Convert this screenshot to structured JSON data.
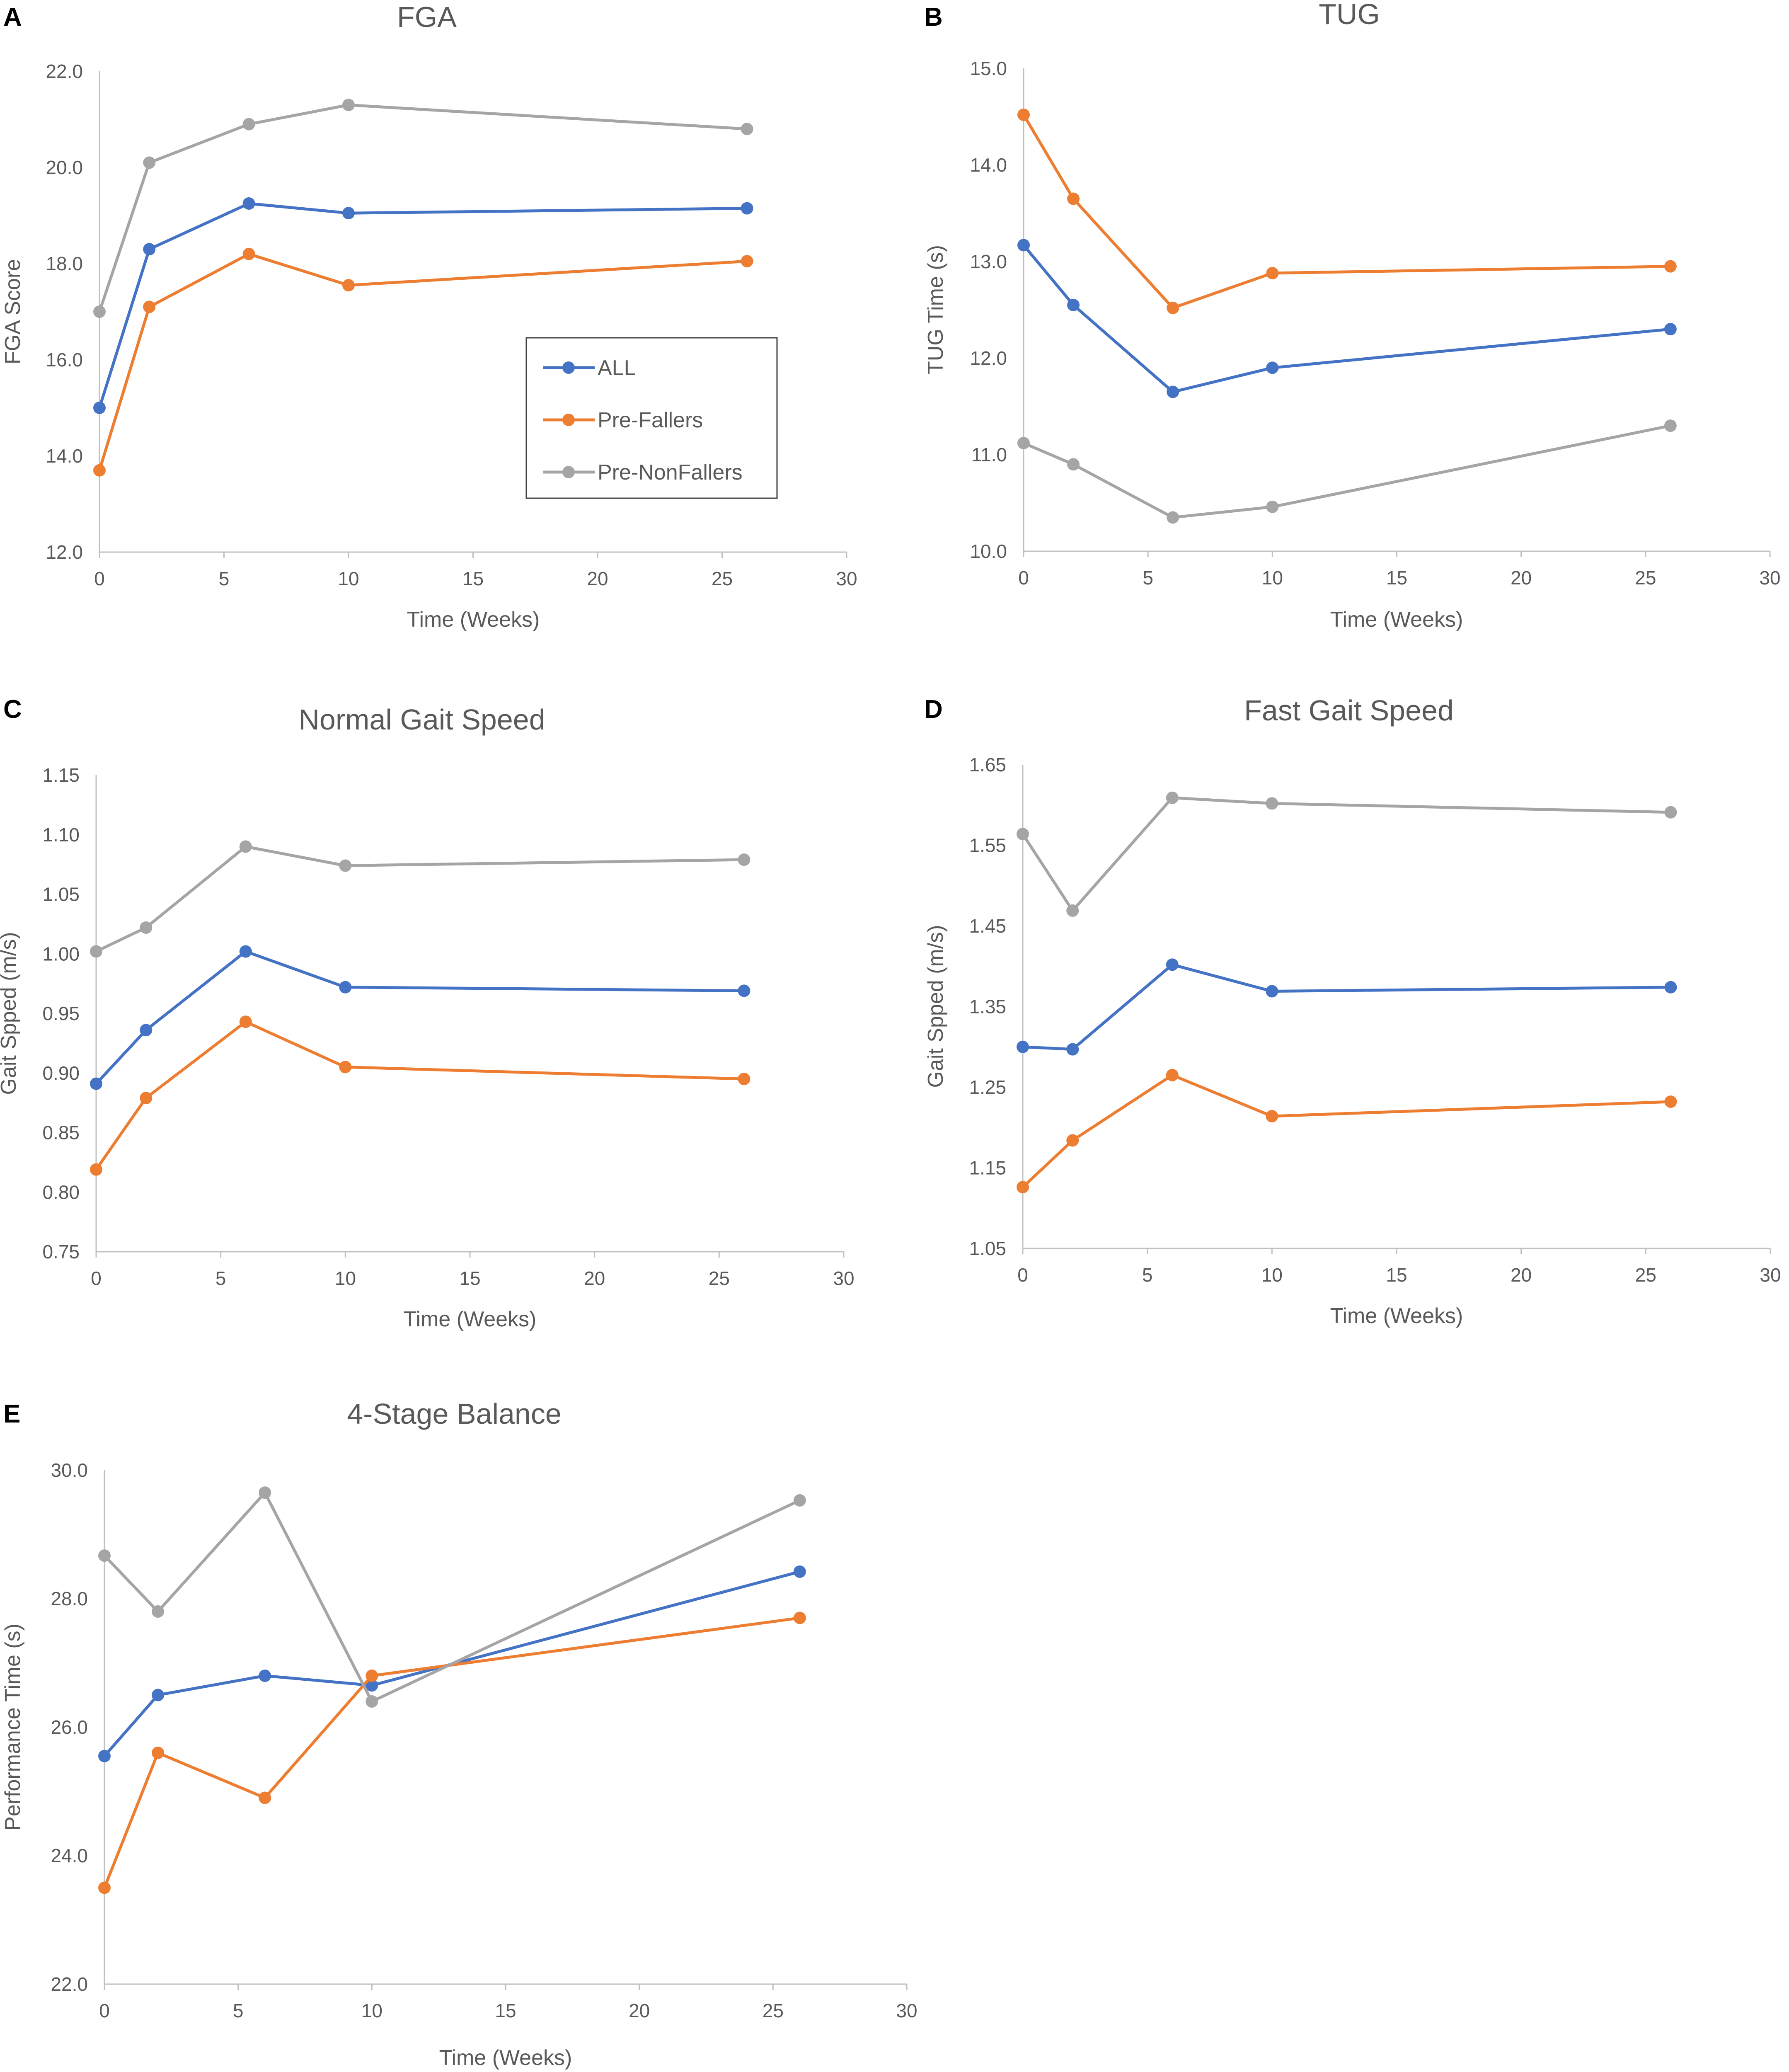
{
  "series_meta": [
    {
      "name": "ALL",
      "color": "#4472C4"
    },
    {
      "name": "Pre-Fallers",
      "color": "#ED7D31"
    },
    {
      "name": "Pre-NonFallers",
      "color": "#A5A5A5"
    }
  ],
  "chart_data": [
    {
      "panel": "A",
      "type": "line",
      "title": "FGA",
      "xlabel": "Time (Weeks)",
      "ylabel": "FGA Score",
      "xlim": [
        0,
        30
      ],
      "ylim": [
        12.0,
        22.0
      ],
      "xticks": [
        "0",
        "5",
        "10",
        "15",
        "20",
        "25",
        "30"
      ],
      "yticks": [
        "12.0",
        "14.0",
        "16.0",
        "18.0",
        "20.0",
        "22.0"
      ],
      "x": [
        0,
        2,
        6,
        10,
        26
      ],
      "legend": "inside-right",
      "series": [
        {
          "name": "ALL",
          "values": [
            15.0,
            18.3,
            19.25,
            19.05,
            19.15
          ]
        },
        {
          "name": "Pre-Fallers",
          "values": [
            13.7,
            17.1,
            18.2,
            17.55,
            18.05
          ]
        },
        {
          "name": "Pre-NonFallers",
          "values": [
            17.0,
            20.1,
            20.9,
            21.3,
            20.8
          ]
        }
      ]
    },
    {
      "panel": "B",
      "type": "line",
      "title": "TUG",
      "xlabel": "Time (Weeks)",
      "ylabel": "TUG Time (s)",
      "xlim": [
        0,
        30
      ],
      "ylim": [
        10.0,
        15.0
      ],
      "xticks": [
        "0",
        "5",
        "10",
        "15",
        "20",
        "25",
        "30"
      ],
      "yticks": [
        "10.0",
        "11.0",
        "12.0",
        "13.0",
        "14.0",
        "15.0"
      ],
      "x": [
        0,
        2,
        6,
        10,
        26
      ],
      "series": [
        {
          "name": "ALL",
          "values": [
            13.17,
            12.55,
            11.65,
            11.9,
            12.3
          ]
        },
        {
          "name": "Pre-Fallers",
          "values": [
            14.52,
            13.65,
            12.52,
            12.88,
            12.95
          ]
        },
        {
          "name": "Pre-NonFallers",
          "values": [
            11.12,
            10.9,
            10.35,
            10.46,
            11.3
          ]
        }
      ]
    },
    {
      "panel": "C",
      "type": "line",
      "title": "Normal Gait Speed",
      "xlabel": "Time (Weeks)",
      "ylabel": "Gait Spped (m/s)",
      "xlim": [
        0,
        30
      ],
      "ylim": [
        0.75,
        1.15
      ],
      "xticks": [
        "0",
        "5",
        "10",
        "15",
        "20",
        "25",
        "30"
      ],
      "yticks": [
        "0.75",
        "0.80",
        "0.85",
        "0.90",
        "0.95",
        "1.00",
        "1.05",
        "1.10",
        "1.15"
      ],
      "x": [
        0,
        2,
        6,
        10,
        26
      ],
      "series": [
        {
          "name": "ALL",
          "values": [
            0.891,
            0.936,
            1.002,
            0.972,
            0.969
          ]
        },
        {
          "name": "Pre-Fallers",
          "values": [
            0.819,
            0.879,
            0.943,
            0.905,
            0.895
          ]
        },
        {
          "name": "Pre-NonFallers",
          "values": [
            1.002,
            1.022,
            1.09,
            1.074,
            1.079
          ]
        }
      ]
    },
    {
      "panel": "D",
      "type": "line",
      "title": "Fast Gait Speed",
      "xlabel": "Time (Weeks)",
      "ylabel": "Gait Spped (m/s)",
      "xlim": [
        0,
        30
      ],
      "ylim": [
        1.05,
        1.65
      ],
      "xticks": [
        "0",
        "5",
        "10",
        "15",
        "20",
        "25",
        "30"
      ],
      "yticks": [
        "1.05",
        "1.15",
        "1.25",
        "1.35",
        "1.45",
        "1.55",
        "1.65"
      ],
      "x": [
        0,
        2,
        6,
        10,
        26
      ],
      "series": [
        {
          "name": "ALL",
          "values": [
            1.3,
            1.297,
            1.402,
            1.369,
            1.374
          ]
        },
        {
          "name": "Pre-Fallers",
          "values": [
            1.126,
            1.184,
            1.265,
            1.214,
            1.232
          ]
        },
        {
          "name": "Pre-NonFallers",
          "values": [
            1.564,
            1.469,
            1.609,
            1.602,
            1.591
          ]
        }
      ]
    },
    {
      "panel": "E",
      "type": "line",
      "title": "4-Stage Balance",
      "xlabel": "Time (Weeks)",
      "ylabel": "Performance Time (s)",
      "xlim": [
        0,
        30
      ],
      "ylim": [
        22.0,
        30.0
      ],
      "xticks": [
        "0",
        "5",
        "10",
        "15",
        "20",
        "25",
        "30"
      ],
      "yticks": [
        "22.0",
        "24.0",
        "26.0",
        "28.0",
        "30.0"
      ],
      "x": [
        0,
        2,
        6,
        10,
        26
      ],
      "series": [
        {
          "name": "ALL",
          "values": [
            25.55,
            26.5,
            26.8,
            26.65,
            28.42
          ]
        },
        {
          "name": "Pre-Fallers",
          "values": [
            23.5,
            25.6,
            24.9,
            26.8,
            27.7
          ]
        },
        {
          "name": "Pre-NonFallers",
          "values": [
            28.67,
            27.8,
            29.65,
            26.4,
            29.53
          ]
        }
      ]
    }
  ]
}
